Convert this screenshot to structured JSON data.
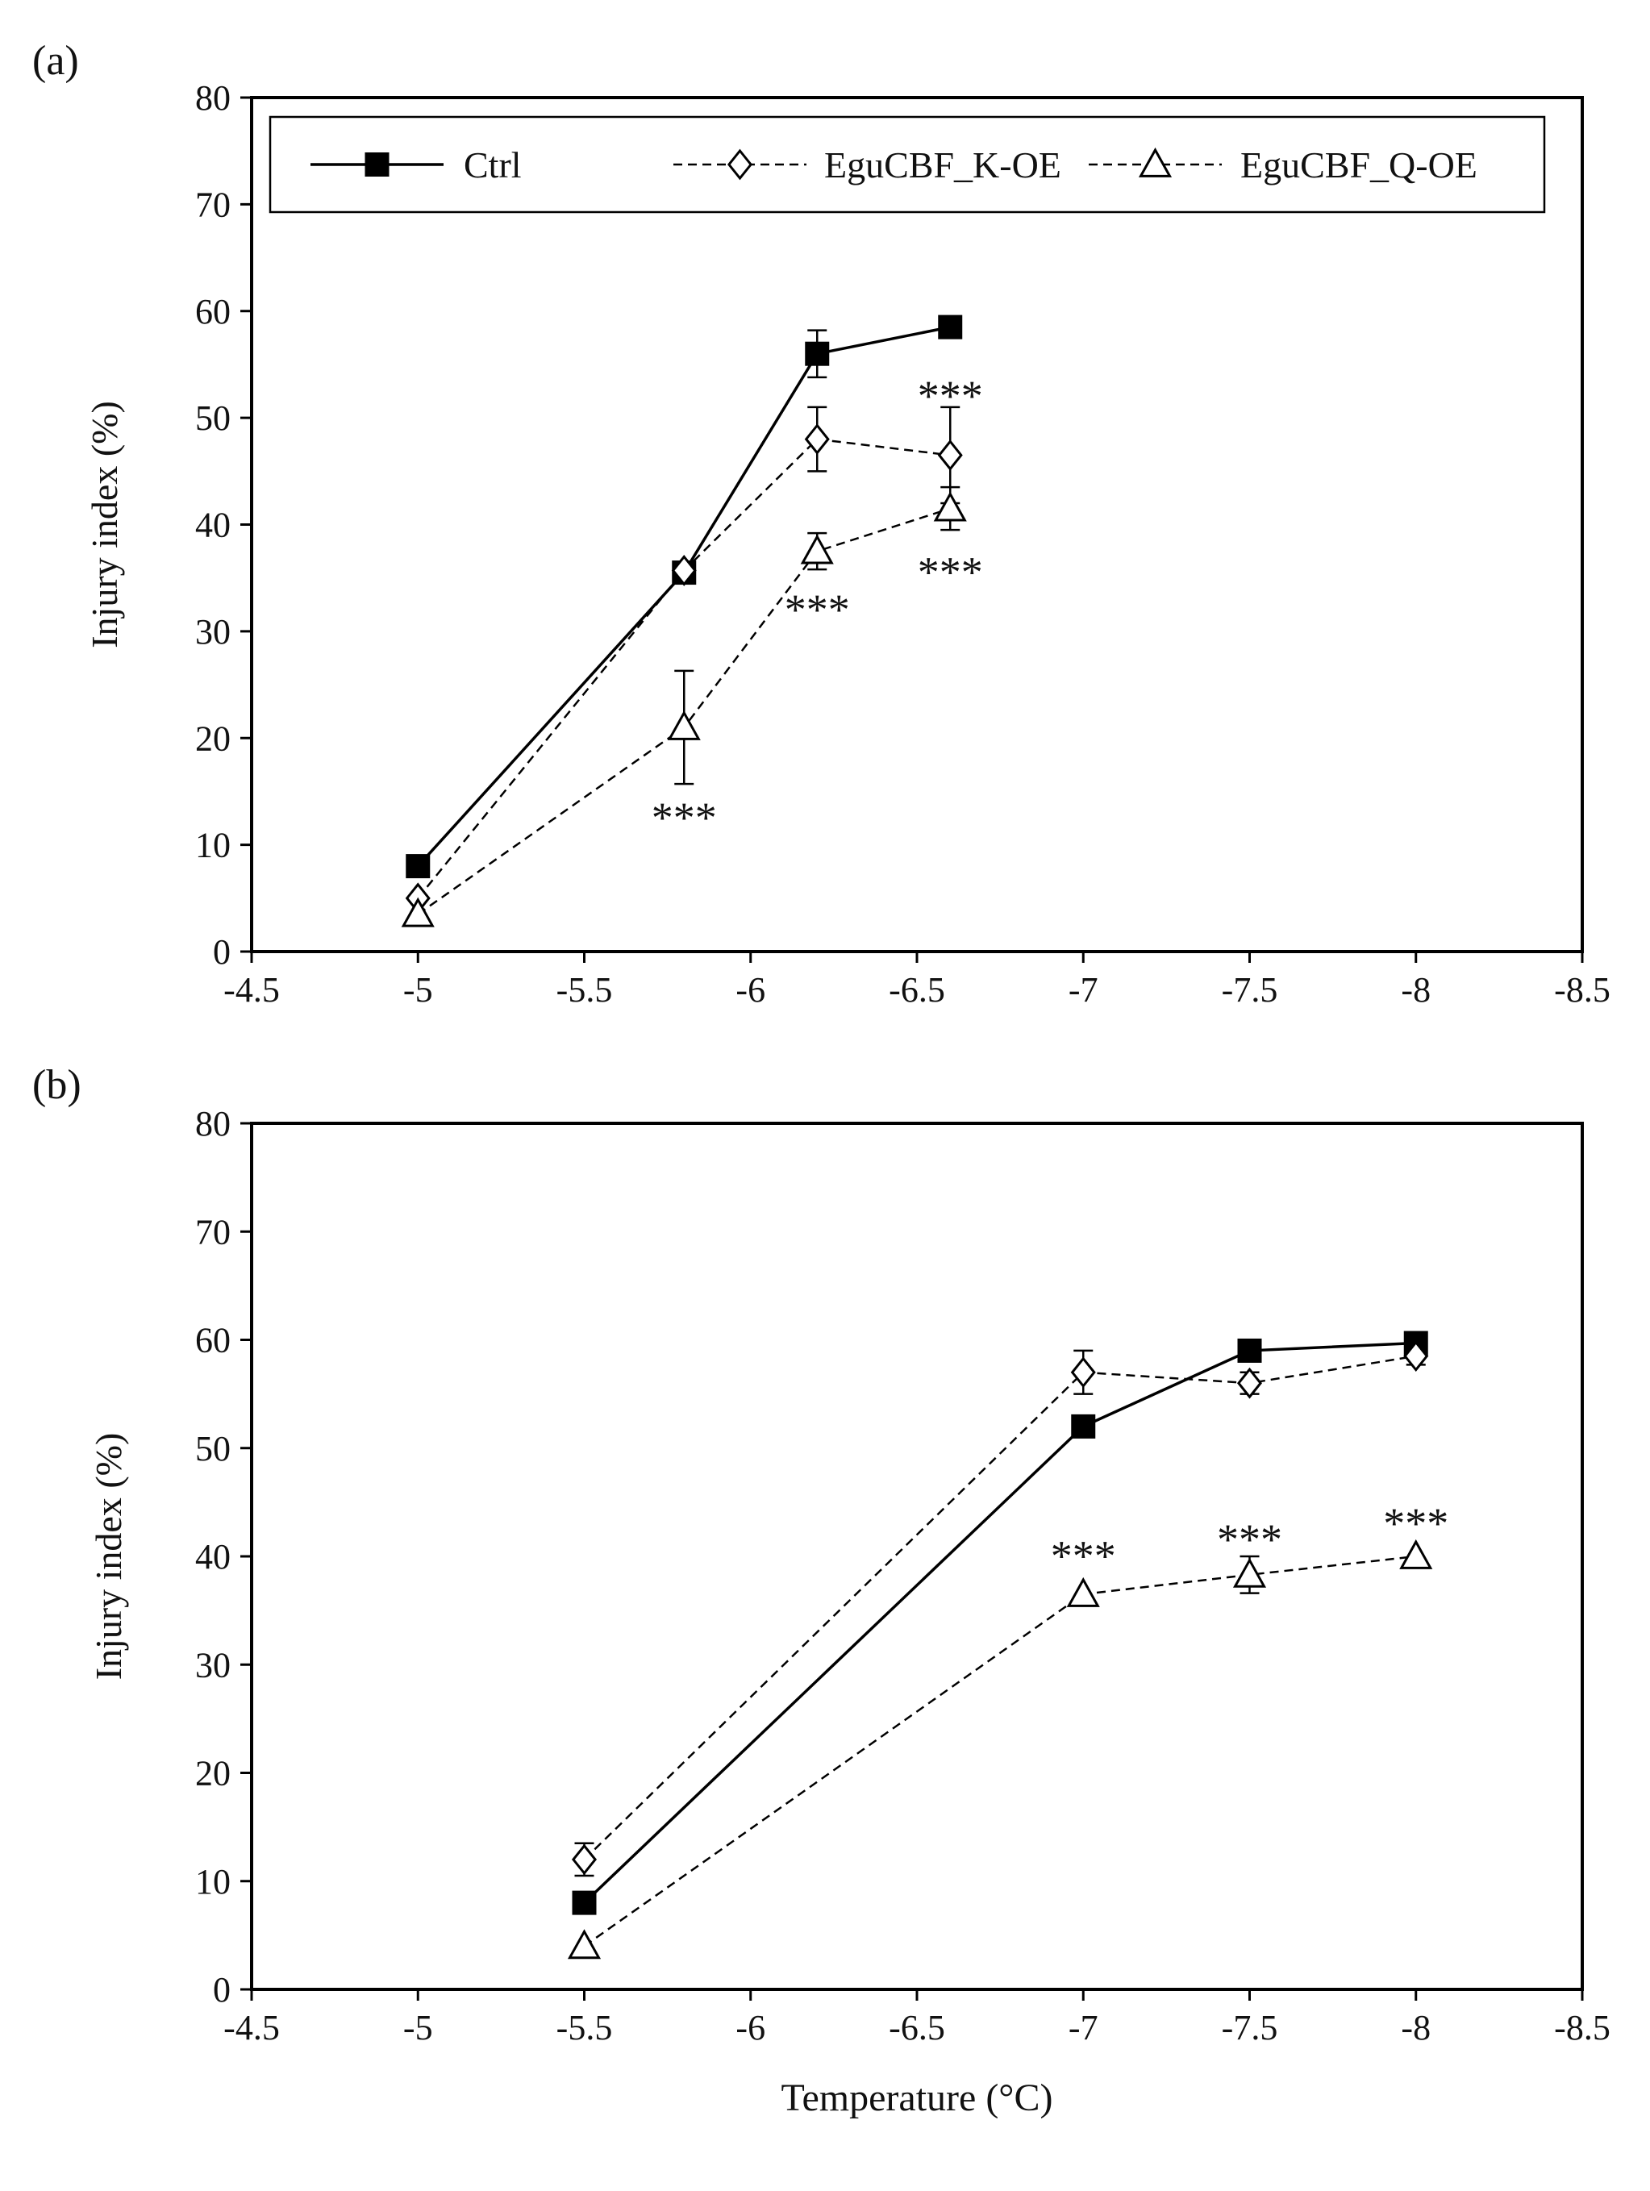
{
  "chart_data": [
    {
      "panel_label": "(a)",
      "type": "line",
      "title": "",
      "ylabel": "Injury index (%)",
      "xlabel": "",
      "xlim": [
        -4.5,
        -8.5
      ],
      "ylim": [
        0,
        80
      ],
      "x_ticks": [
        -4.5,
        -5,
        -5.5,
        -6,
        -6.5,
        -7,
        -7.5,
        -8,
        -8.5
      ],
      "x_tick_labels": [
        "-4.5",
        "-5",
        "-5.5",
        "-6",
        "-6.5",
        "-7",
        "-7.5",
        "-8",
        "-8.5"
      ],
      "y_ticks": [
        0,
        10,
        20,
        30,
        40,
        50,
        60,
        70,
        80
      ],
      "y_tick_labels": [
        "0",
        "10",
        "20",
        "30",
        "40",
        "50",
        "60",
        "70",
        "80"
      ],
      "legend": {
        "placement": "top",
        "show": true
      },
      "series": [
        {
          "name": "Ctrl",
          "marker": "filled-square",
          "line": "solid",
          "x": [
            -5,
            -5.8,
            -6.2,
            -6.6
          ],
          "y": [
            8,
            35.5,
            56,
            58.5
          ],
          "err": [
            0,
            0.8,
            2.2,
            0
          ]
        },
        {
          "name": "EguCBF_K-OE",
          "marker": "open-diamond",
          "line": "dashed",
          "x": [
            -5,
            -5.8,
            -6.2,
            -6.6
          ],
          "y": [
            5,
            35.7,
            48,
            46.5
          ],
          "err": [
            0,
            0.7,
            3,
            4.5
          ]
        },
        {
          "name": "EguCBF_Q-OE",
          "marker": "open-triangle",
          "line": "dashed",
          "x": [
            -5,
            -5.8,
            -6.2,
            -6.6
          ],
          "y": [
            3.5,
            21,
            37.5,
            41.5
          ],
          "err": [
            0,
            5.3,
            1.7,
            2
          ]
        }
      ],
      "annotations": [
        {
          "text": "***",
          "x": -6.6,
          "y": 52.5
        },
        {
          "text": "***",
          "x": -6.6,
          "y": 36
        },
        {
          "text": "***",
          "x": -6.2,
          "y": 32.5
        },
        {
          "text": "***",
          "x": -5.8,
          "y": 13
        }
      ]
    },
    {
      "panel_label": "(b)",
      "type": "line",
      "title": "",
      "ylabel": "Injury index (%)",
      "xlabel": "Temperature (°C)",
      "xlim": [
        -4.5,
        -8.5
      ],
      "ylim": [
        0,
        80
      ],
      "x_ticks": [
        -4.5,
        -5,
        -5.5,
        -6,
        -6.5,
        -7,
        -7.5,
        -8,
        -8.5
      ],
      "x_tick_labels": [
        "-4.5",
        "-5",
        "-5.5",
        "-6",
        "-6.5",
        "-7",
        "-7.5",
        "-8",
        "-8.5"
      ],
      "y_ticks": [
        0,
        10,
        20,
        30,
        40,
        50,
        60,
        70,
        80
      ],
      "y_tick_labels": [
        "0",
        "10",
        "20",
        "30",
        "40",
        "50",
        "60",
        "70",
        "80"
      ],
      "legend": {
        "show": false
      },
      "series": [
        {
          "name": "Ctrl",
          "marker": "filled-square",
          "line": "solid",
          "x": [
            -5.5,
            -7,
            -7.5,
            -8
          ],
          "y": [
            8,
            52,
            59,
            59.7
          ],
          "err": [
            0,
            0,
            0,
            0
          ]
        },
        {
          "name": "EguCBF_K-OE",
          "marker": "open-diamond",
          "line": "dashed",
          "x": [
            -5.5,
            -7,
            -7.5,
            -8
          ],
          "y": [
            12,
            57,
            56,
            58.5
          ],
          "err": [
            1.5,
            2,
            1,
            0.8
          ]
        },
        {
          "name": "EguCBF_Q-OE",
          "marker": "open-triangle",
          "line": "dashed",
          "x": [
            -5.5,
            -7,
            -7.5,
            -8
          ],
          "y": [
            4,
            36.5,
            38.3,
            40
          ],
          "err": [
            0,
            0,
            1.7,
            0
          ]
        }
      ],
      "annotations": [
        {
          "text": "***",
          "x": -7,
          "y": 40.5
        },
        {
          "text": "***",
          "x": -7.5,
          "y": 42
        },
        {
          "text": "***",
          "x": -8,
          "y": 43.5
        }
      ]
    }
  ]
}
